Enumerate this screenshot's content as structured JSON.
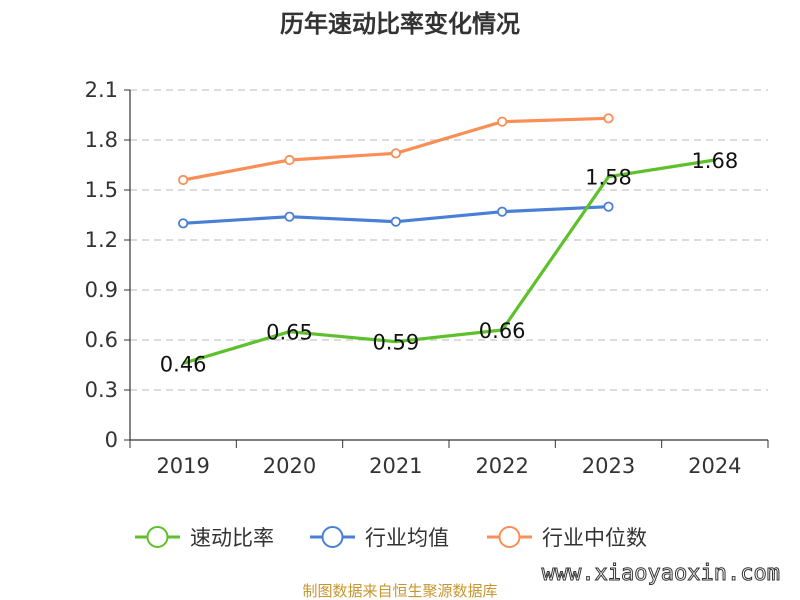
{
  "chart_data": {
    "type": "line",
    "title": "历年速动比率变化情况",
    "categories": [
      "2019",
      "2020",
      "2021",
      "2022",
      "2023",
      "2024"
    ],
    "yticks": [
      "0",
      "0.3",
      "0.6",
      "0.9",
      "1.2",
      "1.5",
      "1.8",
      "2.1"
    ],
    "ylim": [
      0,
      2.1
    ],
    "grid": true,
    "legend_position": "bottom",
    "series": [
      {
        "name": "速动比率",
        "color": "#5ec02b",
        "values": [
          0.46,
          0.65,
          0.59,
          0.66,
          1.58,
          1.68
        ],
        "labels": [
          "0.46",
          "0.65",
          "0.59",
          "0.66",
          "1.58",
          "1.68"
        ],
        "show_labels": true
      },
      {
        "name": "行业均值",
        "color": "#4a7fd6",
        "values": [
          1.3,
          1.34,
          1.31,
          1.37,
          1.4,
          null
        ],
        "show_labels": false
      },
      {
        "name": "行业中位数",
        "color": "#f98f57",
        "values": [
          1.56,
          1.68,
          1.72,
          1.91,
          1.93,
          null
        ],
        "show_labels": false
      }
    ]
  },
  "source": "制图数据来自恒生聚源数据库",
  "watermark": "www.xiaoyaoxin.com"
}
